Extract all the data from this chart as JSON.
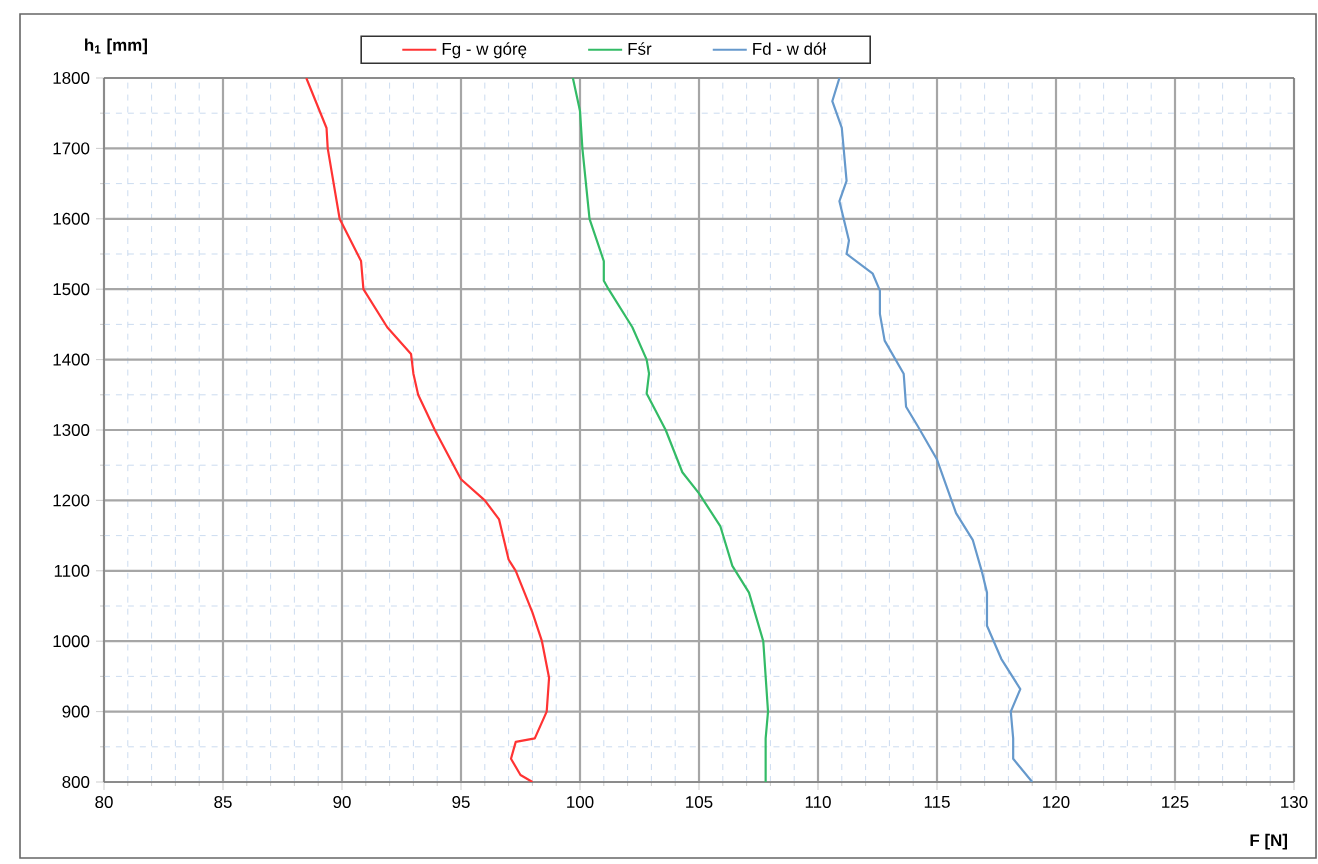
{
  "chart_data": {
    "type": "line",
    "xlabel": "F [N]",
    "ylabel": "h$_{1}$ [mm]",
    "xlim": [
      80,
      130
    ],
    "xticks": [
      80,
      {
        "value": 81,
        "label": null
      },
      {
        "value": 82,
        "label": null
      },
      {
        "value": 83,
        "label": null
      },
      {
        "value": 84,
        "label": null
      },
      85,
      {
        "value": 86,
        "label": null
      },
      {
        "value": 87,
        "label": null
      },
      {
        "value": 88,
        "label": null
      },
      {
        "value": 89,
        "label": null
      },
      90,
      {
        "value": 91,
        "label": null
      },
      {
        "value": 92,
        "label": null
      },
      {
        "value": 93,
        "label": null
      },
      {
        "value": 94,
        "label": null
      },
      95,
      {
        "value": 96,
        "label": null
      },
      {
        "value": 97,
        "label": null
      },
      {
        "value": 98,
        "label": null
      },
      {
        "value": 99,
        "label": null
      },
      100,
      {
        "value": 101,
        "label": null
      },
      {
        "value": 102,
        "label": null
      },
      {
        "value": 103,
        "label": null
      },
      {
        "value": 104,
        "label": null
      },
      105,
      {
        "value": 106,
        "label": null
      },
      {
        "value": 107,
        "label": null
      },
      {
        "value": 108,
        "label": null
      },
      {
        "value": 109,
        "label": null
      },
      110,
      {
        "value": 111,
        "label": null
      },
      {
        "value": 112,
        "label": null
      },
      {
        "value": 113,
        "label": null
      },
      {
        "value": 114,
        "label": null
      },
      115,
      {
        "value": 116,
        "label": null
      },
      {
        "value": 117,
        "label": null
      },
      {
        "value": 118,
        "label": null
      },
      {
        "value": 119,
        "label": null
      },
      120,
      {
        "value": 121,
        "label": null
      },
      {
        "value": 122,
        "label": null
      },
      {
        "value": 123,
        "label": null
      },
      {
        "value": 124,
        "label": null
      },
      125,
      {
        "value": 126,
        "label": null
      },
      {
        "value": 127,
        "label": null
      },
      {
        "value": 128,
        "label": null
      },
      {
        "value": 129,
        "label": null
      },
      130
    ],
    "ylim": [
      800,
      1800
    ],
    "yticks": [
      800,
      {
        "value": 850,
        "label": null
      },
      900,
      {
        "value": 950,
        "label": null
      },
      1000,
      {
        "value": 1050,
        "label": null
      },
      1100,
      {
        "value": 1150,
        "label": null
      },
      1200,
      {
        "value": 1250,
        "label": null
      },
      1300,
      {
        "value": 1350,
        "label": null
      },
      1400,
      {
        "value": 1450,
        "label": null
      },
      1500,
      {
        "value": 1550,
        "label": null
      },
      1600,
      {
        "value": 1650,
        "label": null
      },
      1700,
      {
        "value": 1750,
        "label": null
      },
      1800
    ],
    "grid": true,
    "legend": "top",
    "line_style": "solid",
    "series": [
      {
        "name": "Fg - w górę",
        "color": "#ff3333",
        "x": [
          88.5,
          89.35,
          89.4,
          89.9,
          90.8,
          90.9,
          91.9,
          92.9,
          93.0,
          93.2,
          93.9,
          95.0,
          96.0,
          96.6,
          97.0,
          97.3,
          98.0,
          98.4,
          98.7,
          98.6,
          98.1,
          97.3,
          97.1,
          97.5,
          98.0
        ],
        "values": [
          1800,
          1729,
          1700,
          1600,
          1540,
          1500,
          1446,
          1408,
          1380,
          1350,
          1300,
          1230,
          1200,
          1173,
          1116,
          1100,
          1041,
          1000,
          948,
          900,
          862,
          857,
          833,
          810,
          800
        ]
      },
      {
        "name": "Fśr",
        "color": "#33bb66",
        "x": [
          99.7,
          100.0,
          100.1,
          100.4,
          101.0,
          101.0,
          101.2,
          102.2,
          102.8,
          102.9,
          102.8,
          103.6,
          104.3,
          105.0,
          105.9,
          106.4,
          107.1,
          107.7,
          107.9,
          107.8,
          107.8
        ],
        "values": [
          1800,
          1753,
          1700,
          1600,
          1540,
          1512,
          1500,
          1446,
          1400,
          1380,
          1352,
          1300,
          1240,
          1210,
          1163,
          1107,
          1069,
          1000,
          900,
          862,
          800
        ]
      },
      {
        "name": "Fd - w dół",
        "color": "#6699cc",
        "x": [
          110.9,
          110.6,
          111.0,
          111.2,
          110.9,
          111.1,
          111.3,
          111.2,
          112.3,
          112.6,
          112.6,
          112.8,
          113.6,
          113.7,
          114.2,
          115.0,
          115.4,
          115.8,
          116.5,
          116.9,
          117.1,
          117.1,
          117.7,
          118.5,
          118.1,
          118.2,
          118.2,
          119.0
        ],
        "values": [
          1800,
          1767,
          1729,
          1654,
          1625,
          1597,
          1569,
          1550,
          1522,
          1498,
          1465,
          1427,
          1380,
          1333,
          1305,
          1258,
          1220,
          1182,
          1144,
          1097,
          1069,
          1022,
          975,
          932,
          900,
          862,
          833,
          800
        ]
      }
    ]
  }
}
